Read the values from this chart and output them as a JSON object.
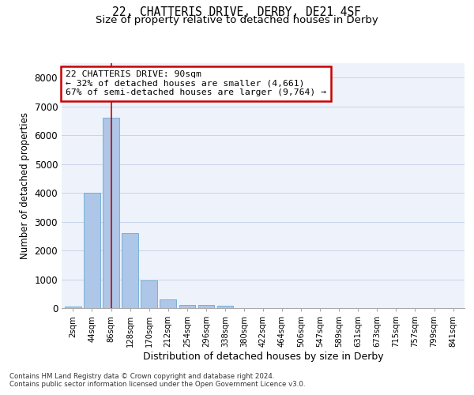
{
  "title_line1": "22, CHATTERIS DRIVE, DERBY, DE21 4SF",
  "title_line2": "Size of property relative to detached houses in Derby",
  "xlabel": "Distribution of detached houses by size in Derby",
  "ylabel": "Number of detached properties",
  "categories": [
    "2sqm",
    "44sqm",
    "86sqm",
    "128sqm",
    "170sqm",
    "212sqm",
    "254sqm",
    "296sqm",
    "338sqm",
    "380sqm",
    "422sqm",
    "464sqm",
    "506sqm",
    "547sqm",
    "589sqm",
    "631sqm",
    "673sqm",
    "715sqm",
    "757sqm",
    "799sqm",
    "841sqm"
  ],
  "values": [
    65,
    4000,
    6600,
    2600,
    950,
    300,
    120,
    110,
    80,
    0,
    0,
    0,
    0,
    0,
    0,
    0,
    0,
    0,
    0,
    0,
    0
  ],
  "bar_color": "#aec6e8",
  "bar_edgecolor": "#6aaad4",
  "grid_color": "#c8d4e8",
  "property_line_label": "22 CHATTERIS DRIVE: 90sqm",
  "annotation_smaller": "← 32% of detached houses are smaller (4,661)",
  "annotation_larger": "67% of semi-detached houses are larger (9,764) →",
  "annotation_box_color": "#ffffff",
  "annotation_box_edgecolor": "#cc0000",
  "property_line_color": "#cc0000",
  "ylim": [
    0,
    8500
  ],
  "yticks": [
    0,
    1000,
    2000,
    3000,
    4000,
    5000,
    6000,
    7000,
    8000
  ],
  "footnote1": "Contains HM Land Registry data © Crown copyright and database right 2024.",
  "footnote2": "Contains public sector information licensed under the Open Government Licence v3.0.",
  "bg_color": "#eef2fa",
  "title_fontsize": 10.5,
  "subtitle_fontsize": 9.5
}
